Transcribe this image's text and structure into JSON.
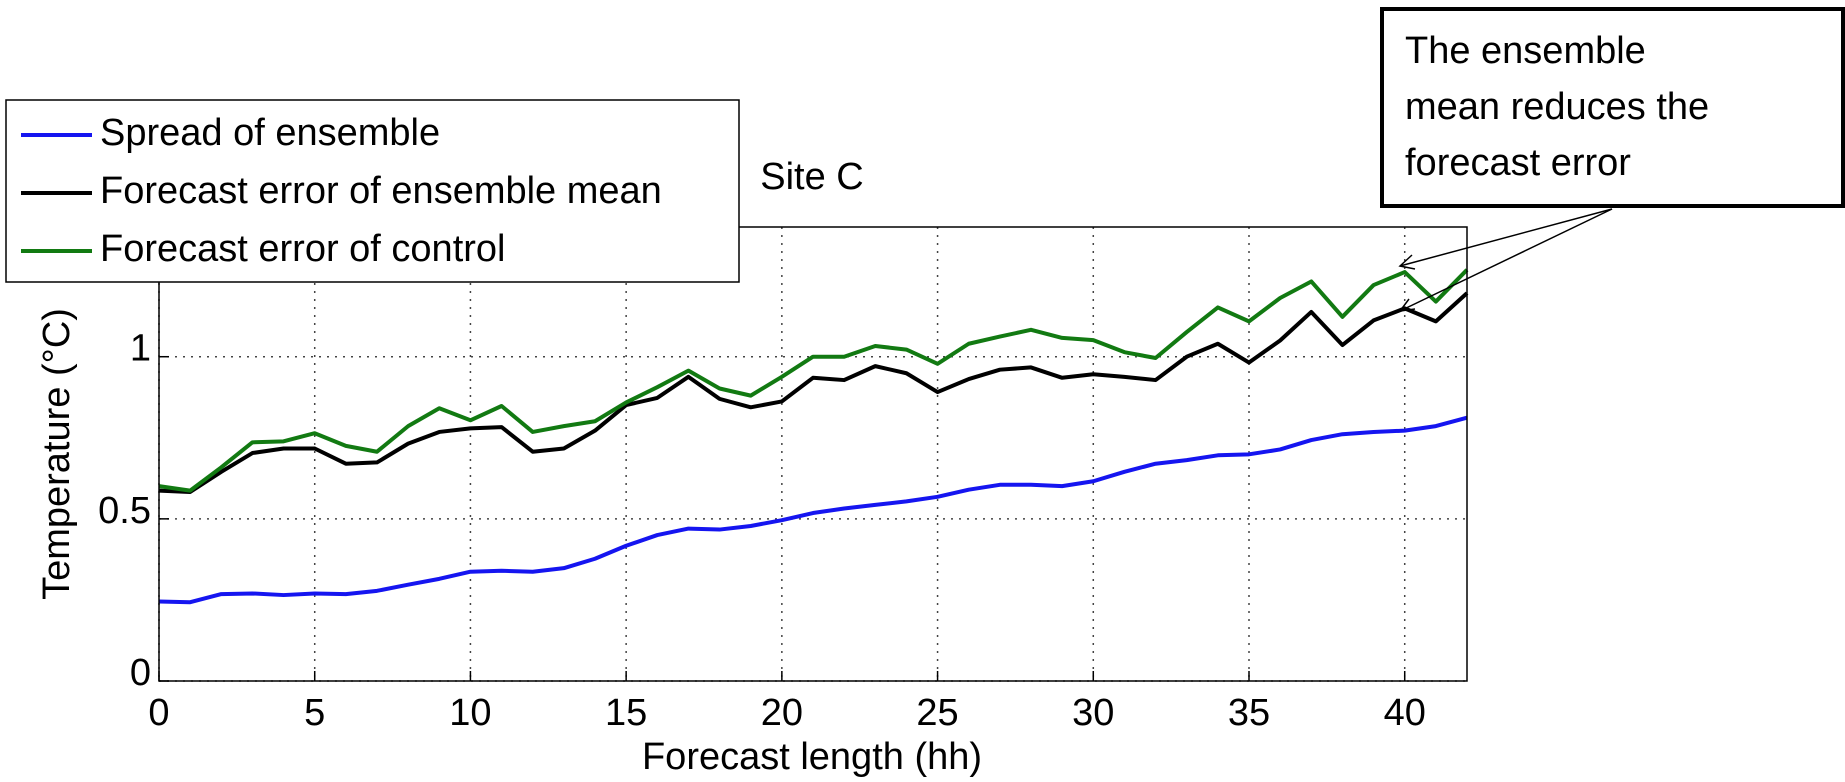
{
  "chart_data": {
    "type": "line",
    "title": "Site C",
    "x_label": "Forecast length (hh)",
    "y_label": "Temperature (°C)",
    "x": [
      0,
      1,
      2,
      3,
      4,
      5,
      6,
      7,
      8,
      9,
      10,
      11,
      12,
      13,
      14,
      15,
      16,
      17,
      18,
      19,
      20,
      21,
      22,
      23,
      24,
      25,
      26,
      27,
      28,
      29,
      30,
      31,
      32,
      33,
      34,
      35,
      36,
      37,
      38,
      39,
      40,
      41,
      42
    ],
    "series": [
      {
        "name": "Spread of ensemble",
        "color": "#1515f0",
        "values": [
          0.245,
          0.243,
          0.268,
          0.27,
          0.265,
          0.27,
          0.268,
          0.278,
          0.297,
          0.315,
          0.337,
          0.34,
          0.337,
          0.348,
          0.377,
          0.417,
          0.45,
          0.47,
          0.467,
          0.478,
          0.496,
          0.518,
          0.532,
          0.543,
          0.554,
          0.568,
          0.59,
          0.605,
          0.605,
          0.601,
          0.616,
          0.645,
          0.67,
          0.681,
          0.696,
          0.699,
          0.714,
          0.743,
          0.761,
          0.768,
          0.772,
          0.786,
          0.812
        ]
      },
      {
        "name": "Forecast error of ensemble mean",
        "color": "#000000",
        "values": [
          0.587,
          0.583,
          0.645,
          0.703,
          0.717,
          0.717,
          0.67,
          0.674,
          0.732,
          0.768,
          0.779,
          0.783,
          0.707,
          0.717,
          0.772,
          0.851,
          0.873,
          0.938,
          0.87,
          0.844,
          0.862,
          0.935,
          0.928,
          0.971,
          0.949,
          0.891,
          0.931,
          0.96,
          0.967,
          0.935,
          0.946,
          0.938,
          0.928,
          1.0,
          1.04,
          0.982,
          1.05,
          1.138,
          1.036,
          1.112,
          1.149,
          1.109,
          1.196
        ]
      },
      {
        "name": "Forecast error of control",
        "color": "#127a12",
        "values": [
          0.601,
          0.587,
          0.659,
          0.736,
          0.739,
          0.764,
          0.725,
          0.707,
          0.786,
          0.841,
          0.804,
          0.848,
          0.768,
          0.786,
          0.801,
          0.859,
          0.906,
          0.957,
          0.902,
          0.88,
          0.938,
          1.0,
          1.0,
          1.033,
          1.022,
          0.978,
          1.04,
          1.062,
          1.083,
          1.058,
          1.051,
          1.014,
          0.996,
          1.076,
          1.152,
          1.109,
          1.181,
          1.232,
          1.123,
          1.221,
          1.261,
          1.17,
          1.268
        ]
      }
    ],
    "xlim": [
      0,
      42
    ],
    "xticks": [
      0,
      5,
      10,
      15,
      20,
      25,
      30,
      35,
      40
    ],
    "ylim": [
      0,
      1.4
    ],
    "yticks": [
      0,
      0.5,
      1
    ],
    "grid": true,
    "legend": "upper left",
    "annotation": [
      "The ensemble",
      "mean reduces the",
      "forecast error"
    ]
  }
}
